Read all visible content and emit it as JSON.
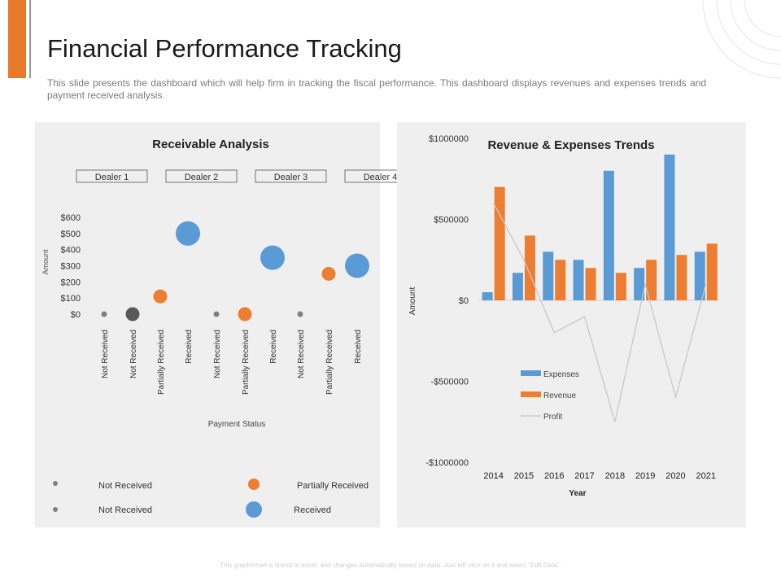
{
  "header": {
    "title": "Financial Performance Tracking",
    "subtitle": "This slide presents the dashboard which will help firm in tracking the fiscal performance. This dashboard displays revenues and expenses trends and payment received analysis."
  },
  "footer": {
    "note": "This graph/chart is linked to excel, and changes automatically based on data. Just left click on it and select \"Edit Data\"."
  },
  "colors": {
    "accent": "#E87A2C",
    "blue": "#5B9BD5",
    "orange": "#ED7D31",
    "gray": "#7F7F7F",
    "dark": "#595959",
    "profit_line": "#C8C8C8"
  },
  "chart_data": [
    {
      "type": "scatter",
      "title": "Receivable Analysis",
      "xlabel": "Payment Status",
      "ylabel": "Amount",
      "y_ticks": [
        "$0",
        "$100",
        "$200",
        "$300",
        "$400",
        "$500",
        "$600"
      ],
      "ylim": [
        0,
        600
      ],
      "dealers": [
        "Dealer 1",
        "Dealer 2",
        "Dealer 3",
        "Dealer 4"
      ],
      "points": [
        {
          "category": "Not Received",
          "dealer": "Dealer 1",
          "value": 0,
          "size": "small",
          "color": "#7F7F7F"
        },
        {
          "category": "Not Received",
          "dealer": "Dealer 2",
          "value": 0,
          "size": "medium",
          "color": "#595959"
        },
        {
          "category": "Partially Received",
          "dealer": "Dealer 2",
          "value": 110,
          "size": "medium",
          "color": "#ED7D31"
        },
        {
          "category": "Received",
          "dealer": "Dealer 2",
          "value": 500,
          "size": "large",
          "color": "#5B9BD5"
        },
        {
          "category": "Not Received",
          "dealer": "Dealer 3",
          "value": 0,
          "size": "small",
          "color": "#7F7F7F"
        },
        {
          "category": "Partially Received",
          "dealer": "Dealer 3",
          "value": 0,
          "size": "medium",
          "color": "#ED7D31"
        },
        {
          "category": "Received",
          "dealer": "Dealer 3",
          "value": 350,
          "size": "large",
          "color": "#5B9BD5"
        },
        {
          "category": "Not Received",
          "dealer": "Dealer 4",
          "value": 0,
          "size": "small",
          "color": "#7F7F7F"
        },
        {
          "category": "Partially Received",
          "dealer": "Dealer 4",
          "value": 250,
          "size": "medium",
          "color": "#ED7D31"
        },
        {
          "category": "Received",
          "dealer": "Dealer 4",
          "value": 300,
          "size": "large",
          "color": "#5B9BD5"
        }
      ],
      "legend": [
        {
          "label": "Not Received",
          "color": "#7F7F7F",
          "size": "small"
        },
        {
          "label": "Partially Received",
          "color": "#ED7D31",
          "size": "medium"
        },
        {
          "label": "Not Received",
          "color": "#7F7F7F",
          "size": "small"
        },
        {
          "label": "Received",
          "color": "#5B9BD5",
          "size": "large"
        }
      ]
    },
    {
      "type": "bar",
      "title": "Revenue & Expenses Trends",
      "xlabel": "Year",
      "ylabel": "Amount",
      "categories": [
        "2014",
        "2015",
        "2016",
        "2017",
        "2018",
        "2019",
        "2020",
        "2021"
      ],
      "y_ticks": [
        "$1000000",
        "$500000",
        "$0",
        "-$500000",
        "-$1000000"
      ],
      "ylim": [
        -1000000,
        1000000
      ],
      "series": [
        {
          "name": "Expenses",
          "type": "bar",
          "color": "#5B9BD5",
          "values": [
            50000,
            170000,
            300000,
            250000,
            800000,
            200000,
            900000,
            300000
          ]
        },
        {
          "name": "Revenue",
          "type": "bar",
          "color": "#ED7D31",
          "values": [
            700000,
            400000,
            250000,
            200000,
            170000,
            250000,
            280000,
            350000
          ]
        },
        {
          "name": "Profit",
          "type": "line",
          "color": "#C8C8C8",
          "values": [
            600000,
            250000,
            -200000,
            -100000,
            -750000,
            100000,
            -600000,
            100000
          ]
        }
      ],
      "legend": [
        "Expenses",
        "Revenue",
        "Profit"
      ]
    }
  ]
}
